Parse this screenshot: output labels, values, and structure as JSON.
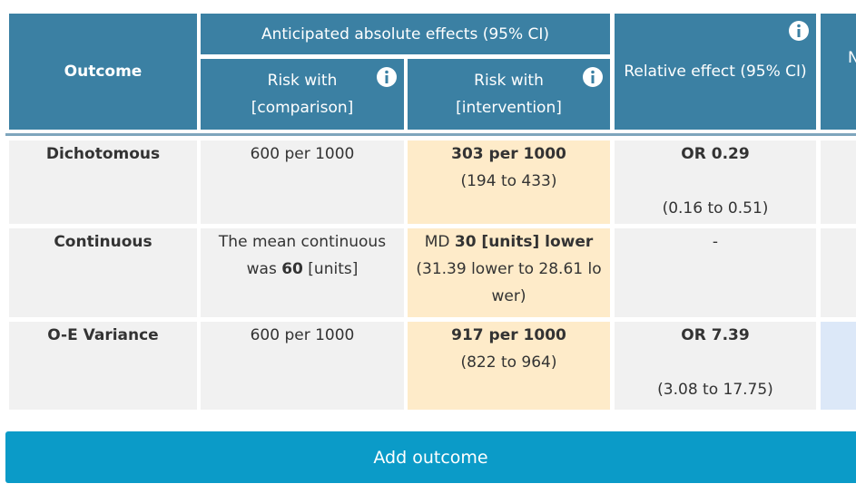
{
  "header": {
    "outcome": "Outcome",
    "anticipated": "Anticipated absolute effects (95% CI)",
    "risk_comparison": [
      "Risk with",
      "[comparison]"
    ],
    "risk_intervention": [
      "Risk with",
      "[intervention]"
    ],
    "relative": "Relative effect (95% CI)",
    "next": "N"
  },
  "table": {
    "rows": [
      {
        "outcome": "Dichotomous",
        "comparison": {
          "text": "600 per 1000"
        },
        "intervention": {
          "bold": "303 per 1000",
          "sub": "(194 to 433)"
        },
        "relative": {
          "bold": "OR 0.29",
          "sub": "(0.16 to 0.51)"
        }
      },
      {
        "outcome": "Continuous",
        "comparison": {
          "prefix": "The mean continuous was",
          "bold": "60",
          "suffix": "[units]"
        },
        "intervention": {
          "prefix": "MD",
          "bold": "30 [units] lower",
          "sub": "(31.39 lower to 28.61 lower)"
        },
        "relative": {
          "text": "-"
        }
      },
      {
        "outcome": "O-E Variance",
        "comparison": {
          "text": "600 per 1000"
        },
        "intervention": {
          "bold": "917 per 1000",
          "sub": "(822 to 964)"
        },
        "relative": {
          "bold": "OR 7.39",
          "sub": "(3.08 to 17.75)"
        }
      }
    ]
  },
  "button": "Add outcome"
}
